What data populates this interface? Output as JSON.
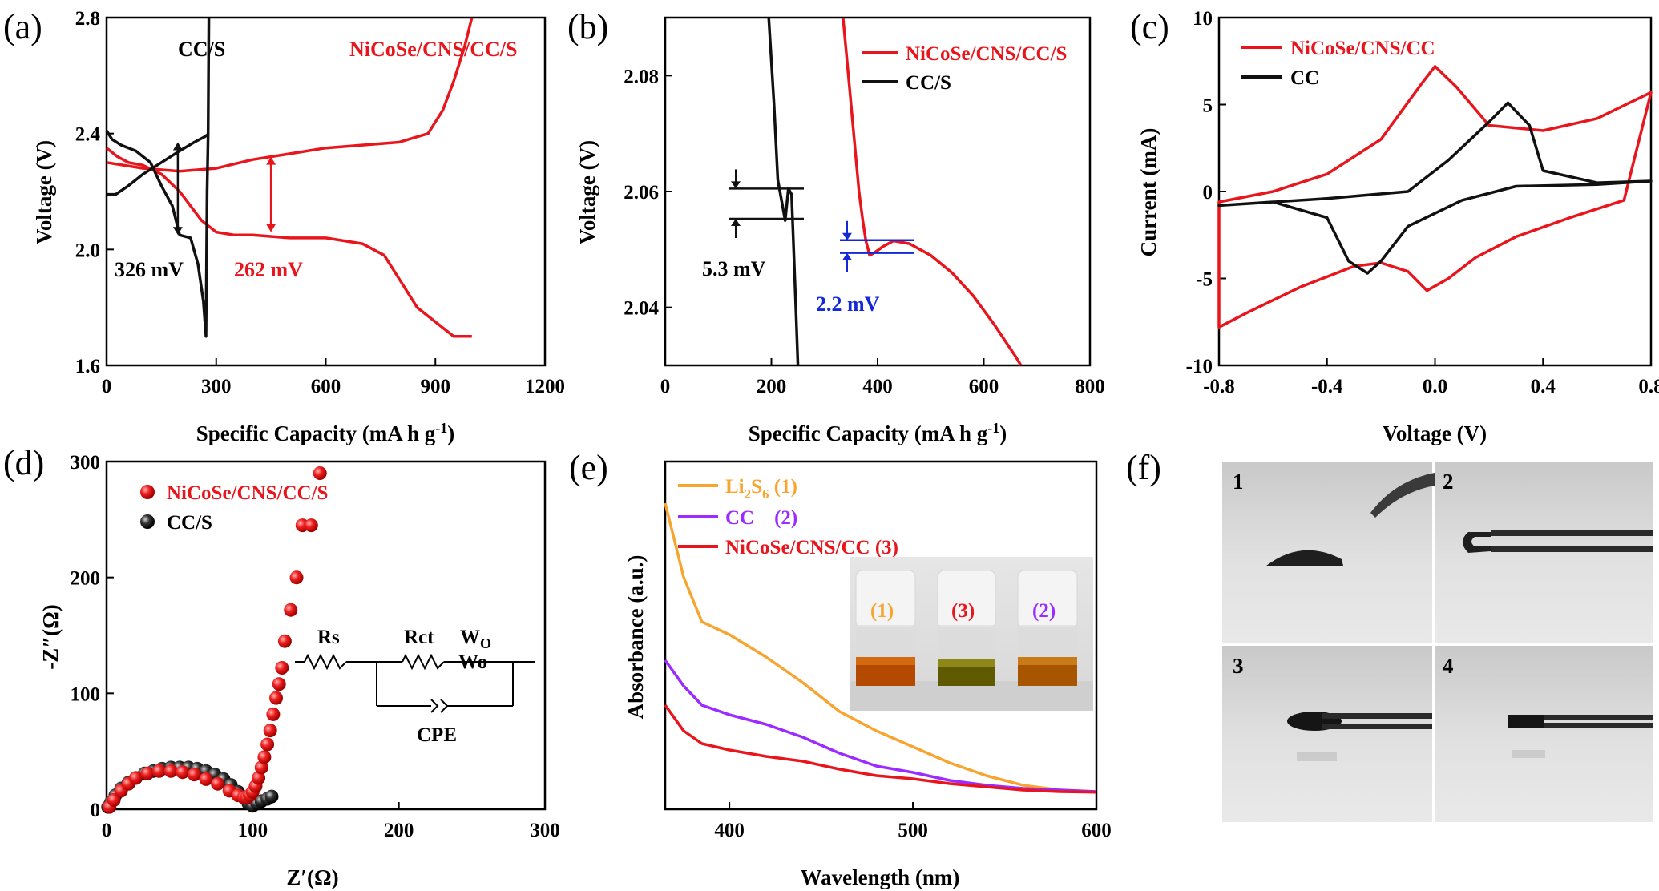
{
  "colors": {
    "red": "#e8161c",
    "black": "#111111",
    "blue": "#1428d8",
    "orange": "#f7a530",
    "purple": "#9b2cff"
  },
  "panels": {
    "a": {
      "letter": "(a)",
      "xlabel": "Specific Capacity (mA h g",
      "xlabel_sup": "-1",
      "xlabel_end": ")",
      "ylabel": "Voltage (V)",
      "xticks": [
        "0",
        "300",
        "600",
        "900",
        "1200"
      ],
      "yticks": [
        "1.6",
        "2.0",
        "2.4",
        "2.8"
      ],
      "series": [
        {
          "name": "CC/S",
          "color": "black"
        },
        {
          "name": "NiCoSe/CNS/CC/S",
          "color": "red"
        }
      ],
      "ann_black": "326 mV",
      "ann_red": "262 mV"
    },
    "b": {
      "letter": "(b)",
      "xlabel": "Specific Capacity (mA h g",
      "xlabel_sup": "-1",
      "xlabel_end": ")",
      "ylabel": "Voltage (V)",
      "xticks": [
        "0",
        "200",
        "400",
        "600",
        "800"
      ],
      "yticks": [
        "2.04",
        "2.06",
        "2.08"
      ],
      "legend": [
        "NiCoSe/CNS/CC/S",
        "CC/S"
      ],
      "ann_black": "5.3 mV",
      "ann_blue": "2.2 mV"
    },
    "c": {
      "letter": "(c)",
      "xlabel": "Voltage (V)",
      "ylabel": "Current (mA)",
      "xticks": [
        "-0.8",
        "-0.4",
        "0.0",
        "0.4",
        "0.8"
      ],
      "yticks": [
        "-10",
        "-5",
        "0",
        "5",
        "10"
      ],
      "legend": [
        "NiCoSe/CNS/CC",
        "CC"
      ]
    },
    "d": {
      "letter": "(d)",
      "xlabel": "Z′(Ω)",
      "ylabel": "-Z″(Ω)",
      "xticks": [
        "0",
        "100",
        "200",
        "300"
      ],
      "yticks": [
        "0",
        "100",
        "200",
        "300"
      ],
      "legend": [
        "NiCoSe/CNS/CC/S",
        "CC/S"
      ],
      "circuit": {
        "rs": "Rs",
        "rct": "Rct",
        "wo_top": "W",
        "wo_top_sub": "O",
        "wo": "Wo",
        "cpe": "CPE"
      }
    },
    "e": {
      "letter": "(e)",
      "xlabel": "Wavelength (nm)",
      "ylabel": "Absorbance (a.u.)",
      "xticks": [
        "400",
        "500",
        "600"
      ],
      "legend": [
        {
          "main": "Li",
          "sub1": "2",
          "mid": "S",
          "sub2": "6",
          "tail": " (1)",
          "color": "orange"
        },
        {
          "main": "CC",
          "tail": "    (2)",
          "color": "purple"
        },
        {
          "main": "NiCoSe/CNS/CC (3)",
          "tail": "",
          "color": "red"
        }
      ],
      "vials": [
        "(1)",
        "(3)",
        "(2)"
      ]
    },
    "f": {
      "letter": "(f)",
      "photos": [
        "1",
        "2",
        "3",
        "4"
      ]
    }
  },
  "chart_data": [
    {
      "type": "line",
      "panel": "a",
      "title": "",
      "xlabel": "Specific Capacity (mA h g-1)",
      "ylabel": "Voltage (V)",
      "xlim": [
        0,
        1200
      ],
      "ylim": [
        1.6,
        2.8
      ],
      "series": [
        {
          "name": "CC/S",
          "x": [
            0,
            15,
            40,
            80,
            120,
            150,
            180,
            200,
            230,
            250,
            265,
            272,
            275,
            278,
            280
          ],
          "y": [
            2.41,
            2.38,
            2.36,
            2.34,
            2.3,
            2.22,
            2.15,
            2.05,
            2.04,
            1.95,
            1.82,
            1.7,
            2.2,
            2.4,
            2.8
          ],
          "x2": [
            0,
            25,
            60,
            100,
            150,
            200,
            240,
            270,
            280
          ],
          "y2": [
            2.19,
            2.19,
            2.22,
            2.26,
            2.3,
            2.34,
            2.37,
            2.39,
            2.4
          ]
        },
        {
          "name": "NiCoSe/CNS/CC/S",
          "x": [
            0,
            30,
            60,
            100,
            150,
            200,
            260,
            300,
            350,
            400,
            500,
            600,
            700,
            760,
            800,
            850,
            900,
            950,
            1000
          ],
          "y": [
            2.35,
            2.32,
            2.3,
            2.29,
            2.26,
            2.2,
            2.1,
            2.06,
            2.05,
            2.05,
            2.04,
            2.04,
            2.02,
            1.98,
            1.9,
            1.8,
            1.75,
            1.7,
            1.7
          ],
          "x2": [
            0,
            100,
            200,
            300,
            400,
            500,
            600,
            700,
            800,
            880,
            920,
            950,
            980,
            1000
          ],
          "y2": [
            2.3,
            2.28,
            2.27,
            2.28,
            2.31,
            2.33,
            2.35,
            2.36,
            2.37,
            2.4,
            2.48,
            2.58,
            2.7,
            2.8
          ]
        }
      ],
      "annotations": [
        "326 mV",
        "262 mV"
      ]
    },
    {
      "type": "line",
      "panel": "b",
      "xlabel": "Specific Capacity (mA h g-1)",
      "ylabel": "Voltage (V)",
      "xlim": [
        0,
        800
      ],
      "ylim": [
        2.03,
        2.09
      ],
      "series": [
        {
          "name": "NiCoSe/CNS/CC/S",
          "x": [
            335,
            345,
            355,
            365,
            372,
            378,
            385,
            395,
            410,
            430,
            460,
            500,
            540,
            580,
            620,
            660,
            670
          ],
          "y": [
            2.09,
            2.08,
            2.07,
            2.06,
            2.055,
            2.0515,
            2.049,
            2.0495,
            2.0505,
            2.0515,
            2.051,
            2.049,
            2.046,
            2.042,
            2.037,
            2.0315,
            2.03
          ]
        },
        {
          "name": "CC/S",
          "x": [
            195,
            205,
            212,
            220,
            226,
            232,
            238,
            242,
            246,
            250
          ],
          "y": [
            2.09,
            2.075,
            2.062,
            2.058,
            2.055,
            2.0605,
            2.0595,
            2.05,
            2.04,
            2.03
          ]
        }
      ],
      "annotations": [
        "5.3 mV",
        "2.2 mV"
      ]
    },
    {
      "type": "line",
      "panel": "c",
      "xlabel": "Voltage (V)",
      "ylabel": "Current (mA)",
      "xlim": [
        -0.8,
        0.8
      ],
      "ylim": [
        -10,
        10
      ],
      "series": [
        {
          "name": "NiCoSe/CNS/CC",
          "x": [
            -0.8,
            -0.6,
            -0.4,
            -0.2,
            -0.05,
            0.0,
            0.08,
            0.2,
            0.4,
            0.6,
            0.8,
            0.7,
            0.5,
            0.3,
            0.15,
            0.05,
            -0.03,
            -0.1,
            -0.2,
            -0.3,
            -0.5,
            -0.7,
            -0.8
          ],
          "y": [
            -0.6,
            0.0,
            1.0,
            3.0,
            6.2,
            7.2,
            6.0,
            3.8,
            3.5,
            4.2,
            5.7,
            -0.5,
            -1.5,
            -2.6,
            -3.8,
            -5.0,
            -5.7,
            -4.6,
            -4.1,
            -4.3,
            -5.5,
            -7.0,
            -7.8
          ]
        },
        {
          "name": "CC",
          "x": [
            -0.8,
            -0.4,
            -0.1,
            0.05,
            0.2,
            0.27,
            0.35,
            0.4,
            0.6,
            0.8,
            0.6,
            0.3,
            0.1,
            -0.1,
            -0.2,
            -0.25,
            -0.32,
            -0.4,
            -0.6,
            -0.8
          ],
          "y": [
            -0.8,
            -0.4,
            0.0,
            1.8,
            4.0,
            5.1,
            3.8,
            1.2,
            0.5,
            0.6,
            0.4,
            0.3,
            -0.5,
            -2.0,
            -4.0,
            -4.7,
            -4.0,
            -1.5,
            -0.6,
            -0.8
          ]
        }
      ]
    },
    {
      "type": "scatter",
      "panel": "d",
      "xlabel": "Z′(Ω)",
      "ylabel": "-Z″(Ω)",
      "xlim": [
        0,
        300
      ],
      "ylim": [
        0,
        300
      ],
      "series": [
        {
          "name": "NiCoSe/CNS/CC/S",
          "x": [
            2,
            5,
            10,
            15,
            20,
            28,
            36,
            44,
            52,
            60,
            68,
            76,
            84,
            90,
            94,
            96,
            98,
            100,
            102,
            104,
            106,
            108,
            110,
            112,
            114,
            116,
            118,
            120,
            122,
            126,
            130,
            134,
            140,
            146
          ],
          "y": [
            2,
            8,
            16,
            22,
            27,
            31,
            33,
            33,
            32,
            30,
            26,
            22,
            16,
            12,
            10,
            10,
            12,
            15,
            20,
            27,
            36,
            45,
            56,
            68,
            82,
            96,
            108,
            122,
            145,
            172,
            200,
            245,
            245,
            290
          ]
        },
        {
          "name": "CC/S",
          "x": [
            1,
            3,
            6,
            10,
            15,
            20,
            26,
            32,
            38,
            44,
            50,
            56,
            62,
            68,
            74,
            80,
            85,
            90,
            94,
            97,
            100,
            103,
            106,
            110,
            113
          ],
          "y": [
            2,
            6,
            12,
            18,
            23,
            27,
            31,
            33,
            35,
            36,
            36,
            36,
            35,
            33,
            30,
            26,
            21,
            15,
            10,
            5,
            3,
            5,
            7,
            9,
            11
          ]
        }
      ]
    },
    {
      "type": "line",
      "panel": "e",
      "xlabel": "Wavelength (nm)",
      "ylabel": "Absorbance (a.u.)",
      "xlim": [
        365,
        600
      ],
      "series": [
        {
          "name": "Li2S6 (1)",
          "x": [
            365,
            375,
            385,
            400,
            420,
            440,
            460,
            480,
            500,
            520,
            540,
            560,
            580,
            600
          ],
          "y": [
            0.93,
            0.7,
            0.56,
            0.52,
            0.45,
            0.37,
            0.28,
            0.22,
            0.17,
            0.12,
            0.08,
            0.05,
            0.035,
            0.03
          ]
        },
        {
          "name": "CC (2)",
          "x": [
            365,
            375,
            385,
            400,
            420,
            440,
            460,
            480,
            500,
            520,
            540,
            560,
            580,
            600
          ],
          "y": [
            0.44,
            0.36,
            0.3,
            0.27,
            0.24,
            0.2,
            0.15,
            0.11,
            0.09,
            0.065,
            0.05,
            0.04,
            0.035,
            0.03
          ]
        },
        {
          "name": "NiCoSe/CNS/CC (3)",
          "x": [
            365,
            375,
            385,
            400,
            420,
            440,
            460,
            480,
            500,
            520,
            540,
            560,
            580,
            600
          ],
          "y": [
            0.3,
            0.22,
            0.18,
            0.16,
            0.14,
            0.125,
            0.1,
            0.08,
            0.07,
            0.055,
            0.045,
            0.035,
            0.03,
            0.028
          ]
        }
      ]
    }
  ]
}
